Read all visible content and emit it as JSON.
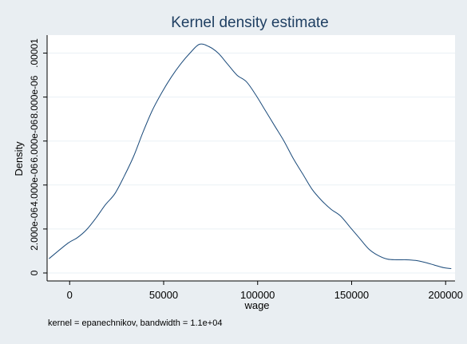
{
  "chart_data": {
    "type": "line",
    "title": "Kernel density estimate",
    "xlabel": "wage",
    "ylabel": "Density",
    "note": "kernel = epanechnikov, bandwidth =  1.1e+04",
    "xlim": [
      -12000,
      205000
    ],
    "ylim": [
      0,
      1.06e-05
    ],
    "x_ticks": [
      {
        "value": 0,
        "label": "0"
      },
      {
        "value": 50000,
        "label": "50000"
      },
      {
        "value": 100000,
        "label": "100000"
      },
      {
        "value": 150000,
        "label": "150000"
      },
      {
        "value": 200000,
        "label": "200000"
      }
    ],
    "y_ticks": [
      {
        "value": 0,
        "label": "0"
      },
      {
        "value": 2e-06,
        "label": "2.000e-06"
      },
      {
        "value": 4e-06,
        "label": "4.000e-06"
      },
      {
        "value": 6e-06,
        "label": "6.000e-06"
      },
      {
        "value": 8e-06,
        "label": "8.000e-06"
      },
      {
        "value": 1e-05,
        "label": ".00001"
      }
    ],
    "grid": true,
    "line_color": "#1a4a7a",
    "series": [
      {
        "x": [
          -11000,
          -1000,
          4000,
          9000,
          14000,
          19000,
          24000,
          29000,
          34000,
          39000,
          44000,
          49000,
          54000,
          59000,
          64000,
          69000,
          74000,
          79000,
          84000,
          89000,
          94000,
          99000,
          104000,
          109000,
          114000,
          119000,
          124000,
          129000,
          134000,
          139000,
          144000,
          149000,
          154000,
          159000,
          164000,
          169000,
          174000,
          179000,
          184000,
          189000,
          194000,
          199000,
          203000
        ],
        "y": [
          6.5e-07,
          1.35e-06,
          1.6e-06,
          1.97e-06,
          2.5e-06,
          3.1e-06,
          3.6e-06,
          4.4e-06,
          5.3e-06,
          6.4e-06,
          7.4e-06,
          8.2e-06,
          8.9e-06,
          9.5e-06,
          1e-05,
          1.04e-05,
          1.03e-05,
          1e-05,
          9.5e-06,
          9e-06,
          8.7e-06,
          8.1e-06,
          7.4e-06,
          6.7e-06,
          6e-06,
          5.2e-06,
          4.5e-06,
          3.8e-06,
          3.3e-06,
          2.9e-06,
          2.6e-06,
          2.1e-06,
          1.6e-06,
          1.1e-06,
          8e-07,
          6.3e-07,
          6e-07,
          6e-07,
          5.7e-07,
          4.8e-07,
          3.6e-07,
          2.4e-07,
          2e-07
        ]
      }
    ]
  }
}
